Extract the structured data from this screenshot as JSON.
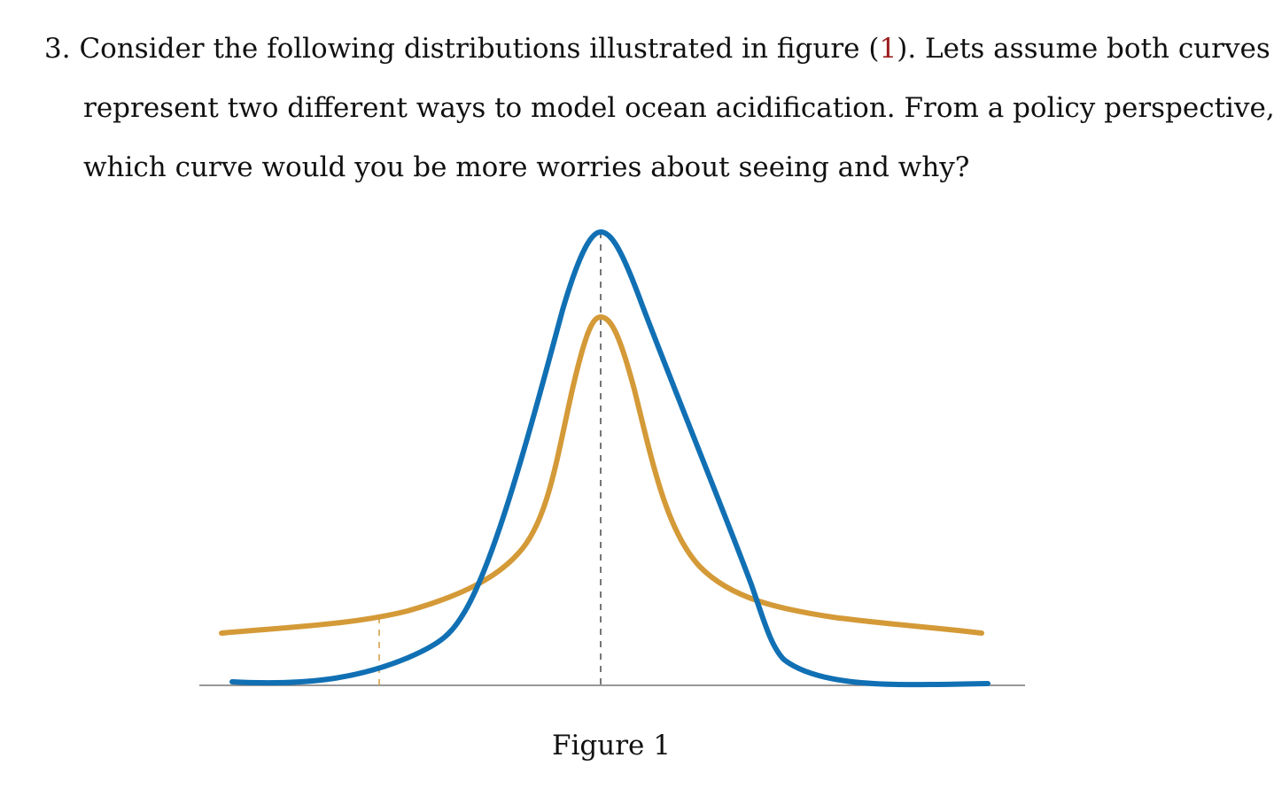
{
  "question": {
    "number": "3.",
    "line1_before": "Consider the following distributions illustrated in figure (",
    "ref": "1",
    "line1_after": "). Lets assume both curves",
    "line2": "represent two different ways to model ocean acidification. From a policy perspective,",
    "line3": "which curve would you be more worries about seeing and why?"
  },
  "figure": {
    "caption": "Figure 1",
    "colors": {
      "blue_curve": "#1170b4",
      "orange_curve": "#d49a38",
      "baseline": "#777777",
      "center_line": "#555555",
      "tail_marker": "#d4a24c"
    },
    "curves": [
      {
        "color_name": "blue",
        "shape": "normal distribution, taller peak, thin tails"
      },
      {
        "color_name": "orange",
        "shape": "fat-tailed distribution, lower peak, heavy tails"
      }
    ]
  }
}
